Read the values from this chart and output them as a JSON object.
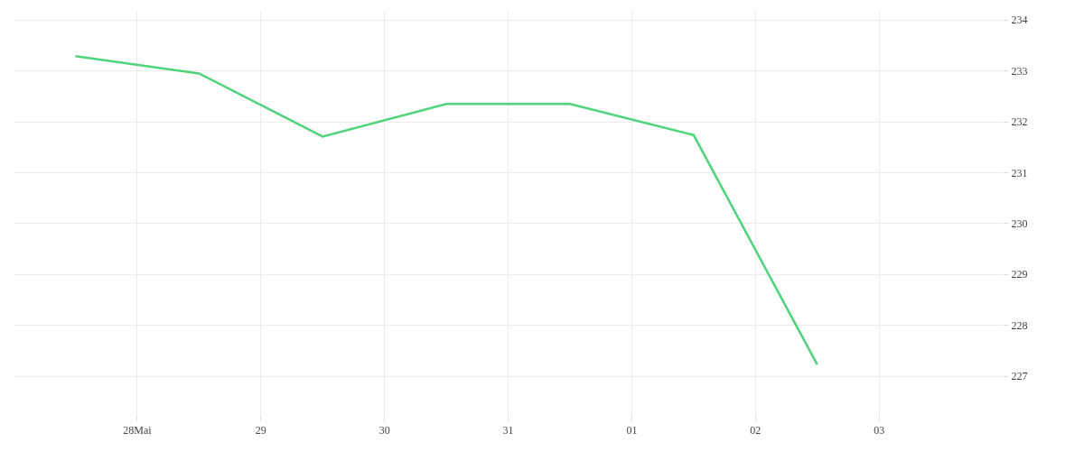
{
  "chart_data": {
    "type": "line",
    "x": [
      "--05-27T12:00",
      "--05-28T12:00",
      "--05-29T12:00",
      "--05-30T12:00",
      "--05-31T12:00",
      "--06-01T12:00",
      "--06-02T12:00"
    ],
    "series": [
      {
        "color": "#4fd47c",
        "values": [
          233.29,
          232.95,
          231.71,
          232.35,
          232.35,
          231.74,
          227.23
        ]
      }
    ],
    "xlim": [
      "--05-27",
      "--06-04"
    ],
    "xticks": [
      {
        "value": "--05-28",
        "label": "28Mai"
      },
      {
        "value": "--05-29",
        "label": "29"
      },
      {
        "value": "--05-30",
        "label": "30"
      },
      {
        "value": "--05-31",
        "label": "31"
      },
      {
        "value": "--06-01",
        "label": "01"
      },
      {
        "value": "--06-02",
        "label": "02"
      },
      {
        "value": "--06-03",
        "label": "03"
      }
    ],
    "ylim": [
      226.24,
      234.18
    ],
    "yticks": [
      227,
      228,
      229,
      230,
      231,
      232,
      233,
      234
    ],
    "grid": true,
    "marker": "none",
    "line_style": "solid"
  }
}
